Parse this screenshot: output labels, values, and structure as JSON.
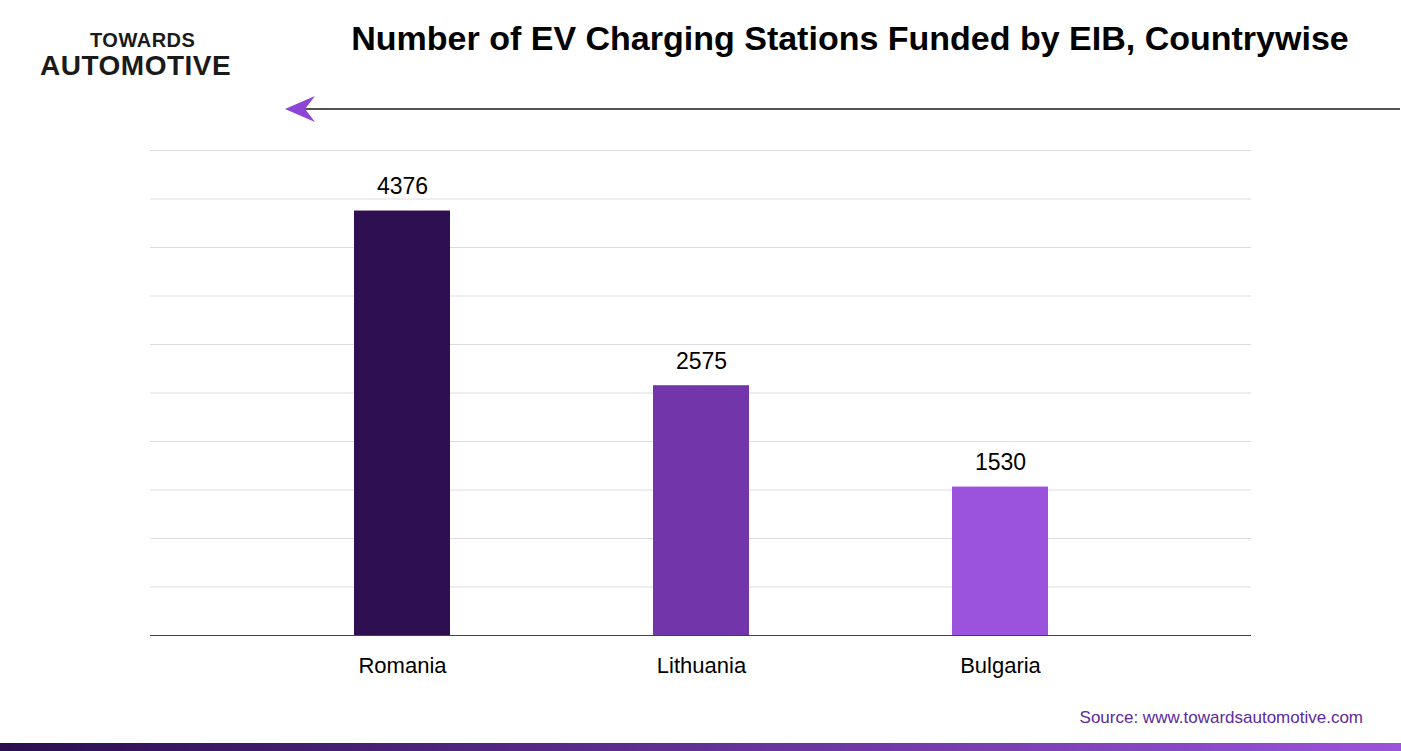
{
  "chart_data": {
    "type": "bar",
    "title": "Number of EV Charging Stations Funded by EIB, Countrywise",
    "annotations": [
      "TOWARDS",
      "AUTOMOTIVE",
      "Source: www.towardsautomotive.com"
    ],
    "categories": [
      "Romania",
      "Lithuania",
      "Bulgaria"
    ],
    "values": [
      4376,
      2575,
      1530
    ],
    "colors": [
      "#2e1052",
      "#7236aa",
      "#9b52dc"
    ],
    "ylim": [
      0,
      5000
    ],
    "yticks": [
      0,
      500,
      1000,
      1500,
      2000,
      2500,
      3000,
      3500,
      4000,
      4500,
      5000
    ],
    "grid": true,
    "data_labels": true,
    "tick_labels": "x"
  }
}
